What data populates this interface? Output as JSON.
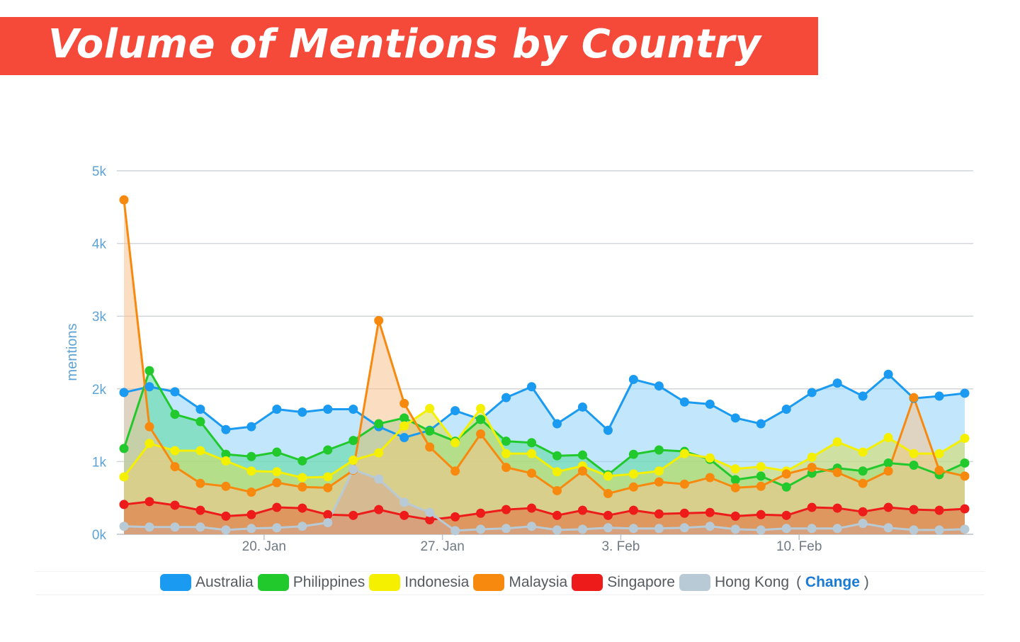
{
  "header": {
    "title": "Volume of Mentions by Country"
  },
  "chart_data": {
    "type": "area",
    "title": "",
    "xlabel": "",
    "ylabel": "mentions",
    "ylim": [
      0,
      5000
    ],
    "yticks": [
      0,
      1000,
      2000,
      3000,
      4000,
      5000
    ],
    "ytick_labels": [
      "0k",
      "1k",
      "2k",
      "3k",
      "4k",
      "5k"
    ],
    "xtick_labels": [
      "20. Jan",
      "27. Jan",
      "3. Feb",
      "10. Feb"
    ],
    "xtick_positions": [
      5.5,
      12.5,
      19.5,
      26.5
    ],
    "grid": true,
    "legend_position": "bottom",
    "series": [
      {
        "name": "Australia",
        "color": "#1a9af0",
        "fill": "#8fd3fa",
        "values": [
          1950,
          2030,
          1960,
          1720,
          1440,
          1480,
          1720,
          1680,
          1720,
          1720,
          1480,
          1330,
          1430,
          1700,
          1580,
          1880,
          2030,
          1520,
          1750,
          1430,
          2130,
          2040,
          1820,
          1790,
          1600,
          1520,
          1720,
          1950,
          2080,
          1900,
          2200,
          1870,
          1900,
          1940
        ]
      },
      {
        "name": "Philippines",
        "color": "#22c92d",
        "fill": "#57d89a",
        "values": [
          1180,
          2250,
          1650,
          1550,
          1100,
          1070,
          1130,
          1010,
          1160,
          1290,
          1520,
          1600,
          1420,
          1280,
          1580,
          1280,
          1260,
          1080,
          1090,
          820,
          1100,
          1160,
          1140,
          1030,
          750,
          800,
          650,
          840,
          910,
          870,
          980,
          950,
          820,
          980
        ]
      },
      {
        "name": "Indonesia",
        "color": "#f5f000",
        "fill": "#d8dc58",
        "values": [
          790,
          1250,
          1150,
          1150,
          1010,
          870,
          860,
          780,
          790,
          1020,
          1120,
          1490,
          1730,
          1260,
          1730,
          1110,
          1110,
          860,
          940,
          800,
          830,
          870,
          1110,
          1050,
          900,
          930,
          870,
          1060,
          1270,
          1130,
          1330,
          1110,
          1110,
          1320
        ]
      },
      {
        "name": "Malaysia",
        "color": "#f7890e",
        "fill": "#f7c28f",
        "values": [
          4600,
          1480,
          930,
          700,
          660,
          580,
          710,
          650,
          640,
          880,
          2940,
          1800,
          1200,
          870,
          1380,
          920,
          840,
          600,
          870,
          560,
          650,
          720,
          690,
          780,
          640,
          660,
          830,
          920,
          850,
          700,
          870,
          1880,
          880,
          800
        ]
      },
      {
        "name": "Singapore",
        "color": "#ee1b1b",
        "fill": "#e06a3a",
        "values": [
          410,
          450,
          400,
          330,
          250,
          270,
          370,
          360,
          270,
          260,
          340,
          260,
          200,
          240,
          290,
          340,
          360,
          260,
          330,
          260,
          330,
          280,
          290,
          300,
          250,
          270,
          260,
          370,
          360,
          310,
          370,
          340,
          330,
          350
        ]
      },
      {
        "name": "Hong Kong",
        "color": "#b8cad6",
        "fill": "#d3a996",
        "values": [
          110,
          100,
          100,
          100,
          60,
          80,
          90,
          110,
          160,
          890,
          760,
          440,
          300,
          50,
          70,
          80,
          110,
          60,
          70,
          90,
          80,
          80,
          90,
          110,
          70,
          60,
          80,
          80,
          80,
          150,
          90,
          60,
          60,
          70
        ]
      }
    ]
  },
  "legend": {
    "items": [
      {
        "label": "Australia",
        "color": "#1a9af0"
      },
      {
        "label": "Philippines",
        "color": "#22c92d"
      },
      {
        "label": "Indonesia",
        "color": "#f5f000"
      },
      {
        "label": "Malaysia",
        "color": "#f7890e"
      },
      {
        "label": "Singapore",
        "color": "#ee1b1b"
      },
      {
        "label": "Hong Kong",
        "color": "#b8cad6"
      }
    ],
    "change_open": "(",
    "change_label": "Change",
    "change_close": ")"
  }
}
